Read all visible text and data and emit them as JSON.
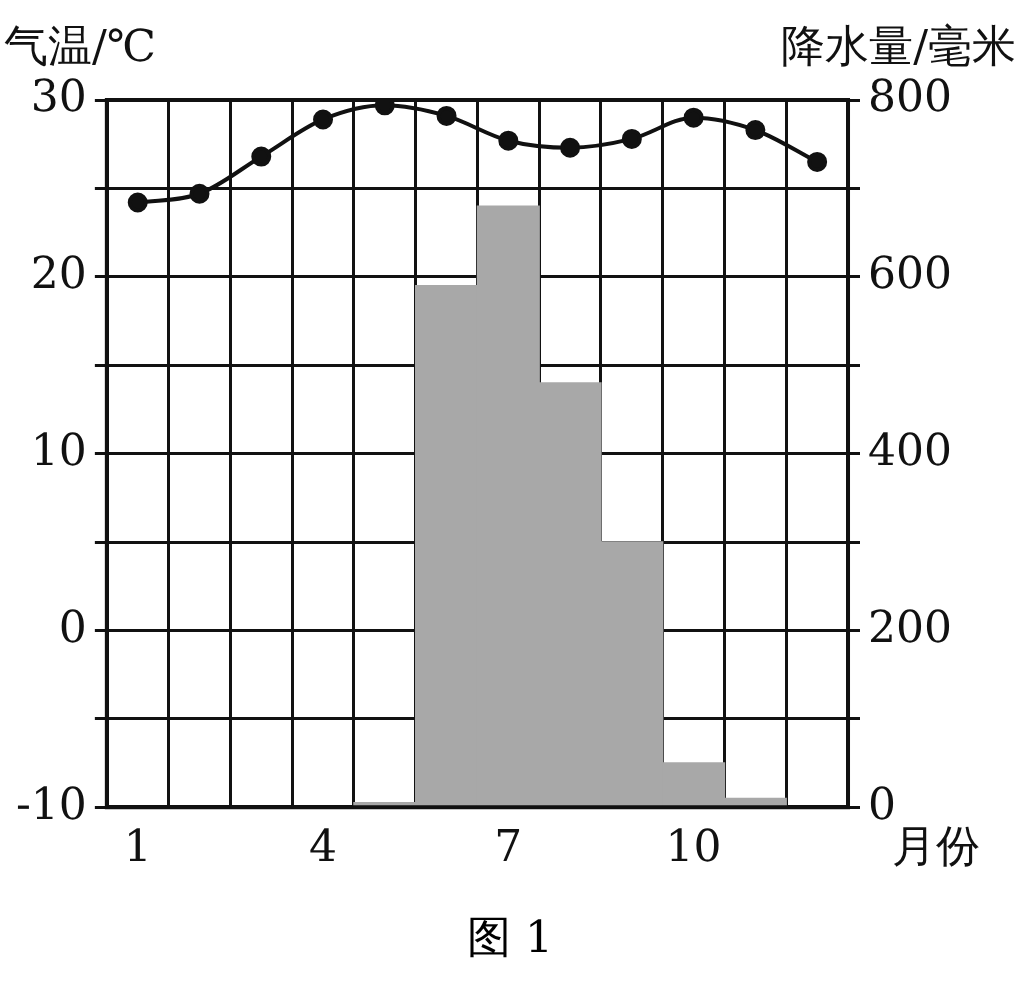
{
  "chart_data": {
    "type": "bar",
    "title": "图 1",
    "xlabel": "月份",
    "ylabel": "气温/℃",
    "y2label": "降水量/毫米",
    "categories": [
      "1",
      null,
      null,
      "4",
      null,
      null,
      "7",
      null,
      null,
      "10",
      null,
      null
    ],
    "series": [
      {
        "axis": "y2",
        "color": "#a8a8a8",
        "values": [
          0,
          0,
          0,
          0,
          5,
          590,
          680,
          480,
          300,
          50,
          10,
          0
        ]
      },
      {
        "type": "line",
        "axis": "y",
        "color": "#111111",
        "marker": "circle",
        "values": [
          24.2,
          24.7,
          26.8,
          28.9,
          29.7,
          29.1,
          27.7,
          27.3,
          27.8,
          29.0,
          28.3,
          26.5
        ]
      }
    ],
    "ylim": [
      -10,
      30
    ],
    "yticks": [
      -10,
      {
        "value": -5,
        "label": null
      },
      0,
      {
        "value": 5,
        "label": null
      },
      10,
      {
        "value": 15,
        "label": null
      },
      20,
      {
        "value": 25,
        "label": null
      },
      30
    ],
    "y2lim": [
      0,
      800
    ],
    "y2ticks": [
      0,
      {
        "value": 100,
        "label": null
      },
      200,
      {
        "value": 300,
        "label": null
      },
      400,
      {
        "value": 500,
        "label": null
      },
      600,
      {
        "value": 700,
        "label": null
      },
      800
    ],
    "grid": true,
    "legend": false
  }
}
